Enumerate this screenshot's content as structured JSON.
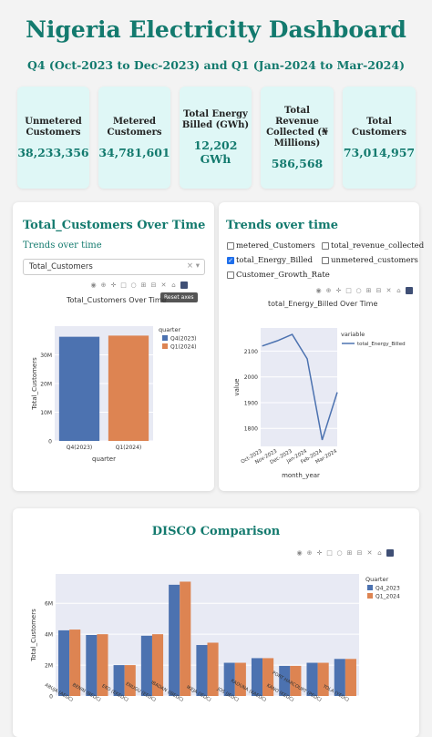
{
  "header": {
    "title": "Nigeria Electricity Dashboard",
    "subtitle": "Q4 (Oct-2023 to Dec-2023) and Q1 (Jan-2024 to Mar-2024)"
  },
  "kpis": [
    {
      "label": "Unmetered\nCustomers",
      "value": "38,233,356"
    },
    {
      "label": "Metered\nCustomers",
      "value": "34,781,601"
    },
    {
      "label": "Total Energy\nBilled (GWh)",
      "value": "12,202\nGWh"
    },
    {
      "label": "Total\nRevenue\nCollected (₦\nMillions)",
      "value": "586,568"
    },
    {
      "label": "Total\nCustomers",
      "value": "73,014,957"
    }
  ],
  "left_card": {
    "title": "Total_Customers Over Time",
    "subtitle": "Trends over time",
    "dropdown_value": "Total_Customers",
    "dropdown_clear": "×",
    "dropdown_arrow": "▾",
    "tooltip": "Reset axes"
  },
  "right_card": {
    "title": "Trends over time",
    "checkboxes": [
      {
        "label": "metered_Customers",
        "checked": false
      },
      {
        "label": "total_revenue_collected",
        "checked": false
      },
      {
        "label": "total_Energy_Billed",
        "checked": true
      },
      {
        "label": "unmetered_customers",
        "checked": false
      },
      {
        "label": "Customer_Growth_Rate",
        "checked": false
      }
    ]
  },
  "bottom_card": {
    "title": "DISCO Comparison"
  },
  "colors": {
    "accent": "#137a6e",
    "q4": "#4c72b0",
    "q1": "#dd8452",
    "plot_bg": "#e8eaf4"
  },
  "chart_data": [
    {
      "type": "bar",
      "title": "Total_Customers Over Time",
      "xlabel": "quarter",
      "ylabel": "Total_Customers",
      "categories": [
        "Q4(2023)",
        "Q1(2024)"
      ],
      "values": [
        36300000,
        36700000
      ],
      "yticks": [
        "0",
        "10M",
        "20M",
        "30M"
      ],
      "ylim": [
        0,
        40000000
      ],
      "legend_title": "quarter",
      "legend": [
        "Q4(2023)",
        "Q1(2024)"
      ],
      "legend_position": "top-right"
    },
    {
      "type": "line",
      "title": "total_Energy_Billed Over Time",
      "xlabel": "month_year",
      "ylabel": "value",
      "x": [
        "Oct-2023",
        "Nov-2023",
        "Dec-2023",
        "Jan-2024",
        "Feb-2024",
        "Mar-2024"
      ],
      "y": [
        2120,
        2140,
        2165,
        2070,
        1755,
        1940
      ],
      "yticks": [
        1800,
        1900,
        2000,
        2100
      ],
      "ylim": [
        1730,
        2190
      ],
      "legend_title": "variable",
      "series": [
        {
          "name": "total_Energy_Billed"
        }
      ],
      "legend_position": "top-right"
    },
    {
      "type": "bar",
      "title": "DISCO Comparison",
      "xlabel": "",
      "ylabel": "Total_Customers",
      "categories": [
        "ABUJA (AEDC)",
        "BENIN (BEDC)",
        "EKO (EKEDC)",
        "ENUGU (EEDC)",
        "IBADAN (IBEDC)",
        "IKEJA (IEDC)",
        "JOS (JEDC)",
        "KADUNA (KAEDC)",
        "KANO (KEDC)",
        "PORT HARCOURT (PEDC)",
        "YOLA (YEDC)"
      ],
      "series": [
        {
          "name": "Q4_2023",
          "values": [
            4250000,
            3950000,
            2000000,
            3900000,
            7200000,
            3300000,
            2150000,
            2450000,
            1950000,
            2150000,
            2400000
          ]
        },
        {
          "name": "Q1_2024",
          "values": [
            4300000,
            4000000,
            2000000,
            4000000,
            7400000,
            3450000,
            2150000,
            2450000,
            1950000,
            2150000,
            2400000
          ]
        }
      ],
      "yticks": [
        "0",
        "2M",
        "4M",
        "6M"
      ],
      "ylim": [
        0,
        7900000
      ],
      "legend_title": "Quarter",
      "legend_position": "top-right"
    }
  ]
}
